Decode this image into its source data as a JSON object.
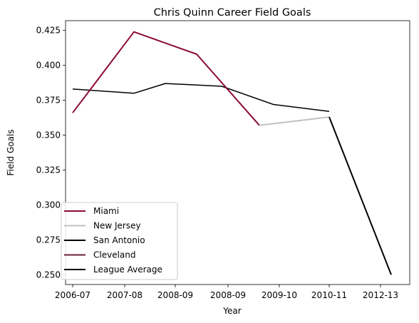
{
  "chart_data": {
    "type": "line",
    "title": "Chris Quinn Career Field Goals",
    "xlabel": "Year",
    "ylabel": "Field Goals",
    "x_ticks": [
      "2006-07",
      "2007-08",
      "2008-09",
      "2008-09",
      "2009-10",
      "2010-11",
      "2012-13"
    ],
    "ylim": [
      0.243,
      0.432
    ],
    "y_ticks": [
      0.25,
      0.275,
      0.3,
      0.325,
      0.35,
      0.375,
      0.4,
      0.425
    ],
    "grid": false,
    "legend_position": "lower-left",
    "series": [
      {
        "name": "Miami",
        "color": "#8b0a3a",
        "points": [
          [
            0.0,
            0.366
          ],
          [
            1.0,
            0.424
          ],
          [
            2.0,
            0.408
          ],
          [
            3.0,
            0.357
          ]
        ]
      },
      {
        "name": "New Jersey",
        "color": "#c0c0c0",
        "points": [
          [
            3.0,
            0.357
          ],
          [
            4.0,
            0.363
          ]
        ]
      },
      {
        "name": "San Antonio",
        "color": "#000000",
        "points": [
          [
            4.0,
            0.363
          ],
          [
            5.0,
            0.25
          ]
        ]
      },
      {
        "name": "Cleveland",
        "color": "#6b1f3a",
        "points": []
      },
      {
        "name": "League Average",
        "color": "#000000",
        "points": [
          [
            0.0,
            0.383
          ],
          [
            1.0,
            0.38
          ],
          [
            1.5,
            0.387
          ],
          [
            2.4,
            0.385
          ],
          [
            3.2,
            0.372
          ],
          [
            4.0,
            0.367
          ]
        ]
      }
    ]
  }
}
